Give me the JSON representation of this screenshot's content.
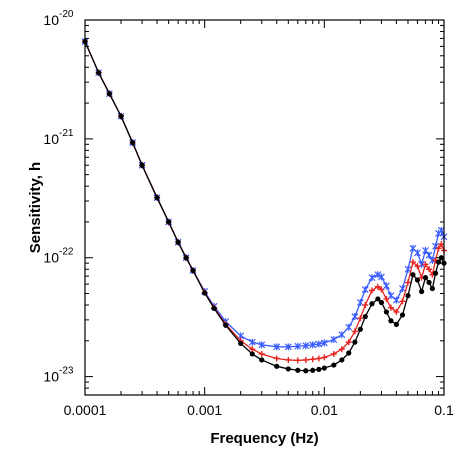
{
  "chart_data": {
    "type": "line",
    "title": "",
    "xlabel": "Frequency (Hz)",
    "ylabel": "Sensitivity, h",
    "xscale": "log",
    "yscale": "log",
    "xlim": [
      0.0001,
      0.1
    ],
    "ylim": [
      7e-24,
      1e-20
    ],
    "grid": false,
    "legend": "none",
    "x_ticks": [
      {
        "value": 0.0001,
        "label": "0.0001"
      },
      {
        "value": 0.001,
        "label": "0.001"
      },
      {
        "value": 0.01,
        "label": "0.01"
      },
      {
        "value": 0.1,
        "label": "0.1"
      }
    ],
    "y_ticks": [
      {
        "value": 1e-20,
        "base": "10",
        "exp": "-20"
      },
      {
        "value": 1e-21,
        "base": "10",
        "exp": "-21"
      },
      {
        "value": 1e-22,
        "base": "10",
        "exp": "-22"
      },
      {
        "value": 1e-23,
        "base": "10",
        "exp": "-23"
      }
    ],
    "x": [
      0.0001,
      0.00013,
      0.00016,
      0.0002,
      0.00025,
      0.0003,
      0.0004,
      0.0005,
      0.0006,
      0.0007,
      0.0008,
      0.001,
      0.0012,
      0.0015,
      0.002,
      0.0025,
      0.003,
      0.004,
      0.005,
      0.006,
      0.007,
      0.008,
      0.009,
      0.01,
      0.012,
      0.014,
      0.016,
      0.018,
      0.02,
      0.022,
      0.025,
      0.028,
      0.03,
      0.033,
      0.036,
      0.04,
      0.045,
      0.05,
      0.055,
      0.06,
      0.065,
      0.07,
      0.075,
      0.08,
      0.085,
      0.09,
      0.095,
      0.1
    ],
    "series": [
      {
        "color": "#3a5cff",
        "values": [
          6.6e-21,
          3.6e-21,
          2.4e-21,
          1.55e-21,
          9.3e-22,
          6e-22,
          3.2e-22,
          2e-22,
          1.35e-22,
          1e-22,
          7.8e-23,
          5.2e-23,
          3.9e-23,
          2.9e-23,
          2.2e-23,
          1.95e-23,
          1.85e-23,
          1.78e-23,
          1.78e-23,
          1.8e-23,
          1.82e-23,
          1.85e-23,
          1.88e-23,
          1.92e-23,
          2.05e-23,
          2.25e-23,
          2.6e-23,
          3.2e-23,
          4.2e-23,
          5.4e-23,
          6.8e-23,
          7.2e-23,
          6.9e-23,
          5.8e-23,
          4.8e-23,
          4.4e-23,
          5.5e-23,
          8e-23,
          1.2e-22,
          1.1e-22,
          8.8e-23,
          1.15e-22,
          1.05e-22,
          9.5e-23,
          1.25e-22,
          1.6e-22,
          1.7e-22,
          1.5e-22
        ]
      },
      {
        "color": "#e8231f",
        "values": [
          6.6e-21,
          3.6e-21,
          2.4e-21,
          1.55e-21,
          9.3e-22,
          6e-22,
          3.2e-22,
          2e-22,
          1.35e-22,
          1e-22,
          7.8e-23,
          5.1e-23,
          3.8e-23,
          2.75e-23,
          2e-23,
          1.7e-23,
          1.55e-23,
          1.42e-23,
          1.38e-23,
          1.37e-23,
          1.38e-23,
          1.4e-23,
          1.42e-23,
          1.45e-23,
          1.55e-23,
          1.7e-23,
          1.95e-23,
          2.4e-23,
          3.1e-23,
          4e-23,
          5.3e-23,
          5.7e-23,
          5.4e-23,
          4.5e-23,
          3.8e-23,
          3.5e-23,
          4.3e-23,
          6.2e-23,
          9.2e-23,
          8.5e-23,
          6.8e-23,
          8.8e-23,
          8e-23,
          7.2e-23,
          9.5e-23,
          1.2e-22,
          1.3e-22,
          1.15e-22
        ]
      },
      {
        "color": "#000000",
        "values": [
          6.6e-21,
          3.6e-21,
          2.4e-21,
          1.55e-21,
          9.3e-22,
          6e-22,
          3.2e-22,
          2e-22,
          1.35e-22,
          1e-22,
          7.8e-23,
          5.05e-23,
          3.75e-23,
          2.7e-23,
          1.9e-23,
          1.55e-23,
          1.38e-23,
          1.22e-23,
          1.16e-23,
          1.13e-23,
          1.12e-23,
          1.13e-23,
          1.15e-23,
          1.18e-23,
          1.25e-23,
          1.38e-23,
          1.58e-23,
          1.95e-23,
          2.5e-23,
          3.2e-23,
          4.1e-23,
          4.5e-23,
          4.2e-23,
          3.5e-23,
          2.95e-23,
          2.75e-23,
          3.3e-23,
          4.8e-23,
          7.2e-23,
          6.5e-23,
          5.2e-23,
          6.8e-23,
          6.2e-23,
          5.5e-23,
          7.4e-23,
          9.2e-23,
          1e-22,
          9e-23
        ]
      }
    ]
  }
}
